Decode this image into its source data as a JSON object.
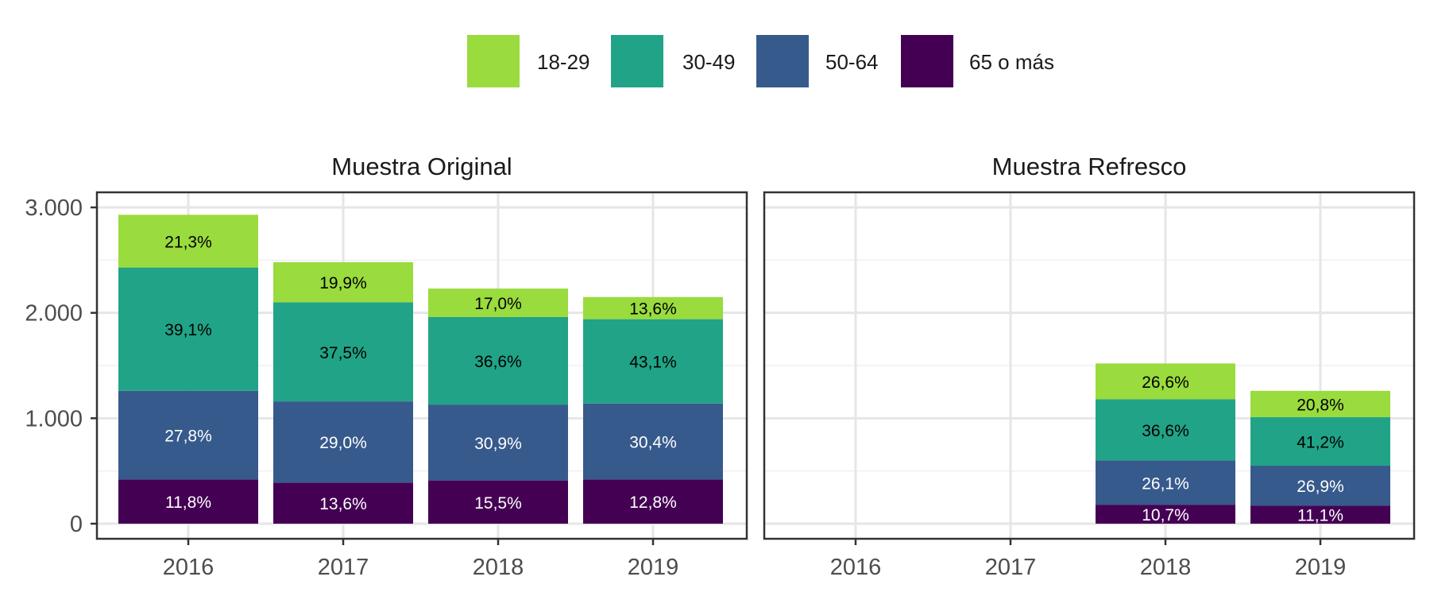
{
  "chart_data": {
    "type": "bar",
    "stacked": true,
    "legend": {
      "position": "top",
      "entries": [
        {
          "label": "18-29",
          "color": "#9ADB3E"
        },
        {
          "label": "30-49",
          "color": "#21A387"
        },
        {
          "label": "50-64",
          "color": "#375A8C"
        },
        {
          "label": "65 o más",
          "color": "#440154"
        }
      ]
    },
    "ylim": [
      0,
      3300
    ],
    "yticks": [
      0,
      1000,
      2000,
      3000
    ],
    "ytick_labels": [
      "0",
      "1.000",
      "2.000",
      "3.000"
    ],
    "grid": true,
    "categories": [
      "2016",
      "2017",
      "2018",
      "2019"
    ],
    "panels": [
      {
        "title": "Muestra Original",
        "series": [
          {
            "name": "65 o más",
            "values": [
              420,
              390,
              410,
              420
            ],
            "labels": [
              "11,8%",
              "13,6%",
              "15,5%",
              "12,8%"
            ]
          },
          {
            "name": "50-64",
            "values": [
              840,
              770,
              720,
              720
            ],
            "labels": [
              "27,8%",
              "29,0%",
              "30,9%",
              "30,4%"
            ]
          },
          {
            "name": "30-49",
            "values": [
              1170,
              940,
              830,
              800
            ],
            "labels": [
              "39,1%",
              "37,5%",
              "36,6%",
              "43,1%"
            ]
          },
          {
            "name": "18-29",
            "values": [
              500,
              380,
              270,
              210
            ],
            "labels": [
              "21,3%",
              "19,9%",
              "17,0%",
              "13,6%"
            ]
          }
        ]
      },
      {
        "title": "Muestra Refresco",
        "series": [
          {
            "name": "65 o más",
            "values": [
              0,
              0,
              180,
              170
            ],
            "labels": [
              "",
              "",
              "10,7%",
              "11,1%"
            ]
          },
          {
            "name": "50-64",
            "values": [
              0,
              0,
              420,
              380
            ],
            "labels": [
              "",
              "",
              "26,1%",
              "26,9%"
            ]
          },
          {
            "name": "30-49",
            "values": [
              0,
              0,
              580,
              460
            ],
            "labels": [
              "",
              "",
              "36,6%",
              "41,2%"
            ]
          },
          {
            "name": "18-29",
            "values": [
              0,
              0,
              340,
              250
            ],
            "labels": [
              "",
              "",
              "26,6%",
              "20,8%"
            ]
          }
        ]
      }
    ]
  }
}
